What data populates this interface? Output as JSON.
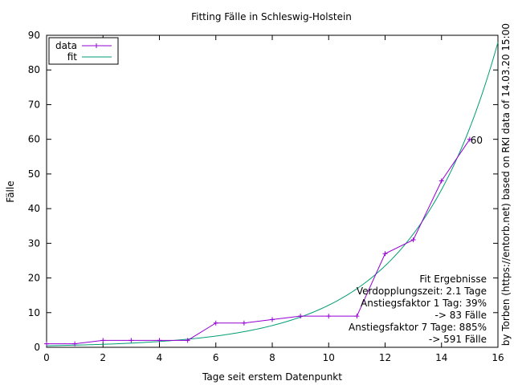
{
  "chart_data": {
    "type": "line",
    "title": "Fitting Fälle in Schleswig-Holstein",
    "xlabel": "Tage seit erstem Datenpunkt",
    "ylabel": "Fälle",
    "xlim": [
      0,
      16
    ],
    "ylim": [
      0,
      90
    ],
    "x_ticks": [
      "0",
      "2",
      "4",
      "6",
      "8",
      "10",
      "12",
      "14",
      "16"
    ],
    "y_ticks": [
      "0",
      "10",
      "20",
      "30",
      "40",
      "50",
      "60",
      "70",
      "80",
      "90"
    ],
    "grid": false,
    "legend_position": "top-left",
    "series": [
      {
        "name": "data",
        "color": "#9400d3",
        "marker": "plus",
        "x": [
          0,
          1,
          2,
          3,
          4,
          5,
          6,
          7,
          8,
          9,
          10,
          11,
          12,
          13,
          14,
          15
        ],
        "y": [
          1,
          1,
          2,
          2,
          2,
          2,
          7,
          7,
          8,
          9,
          9,
          9,
          27,
          31,
          48,
          60
        ]
      },
      {
        "name": "fit",
        "color": "#009e73",
        "a": 0.448,
        "b": 0.33,
        "x": [
          0,
          16
        ]
      }
    ],
    "point_label": {
      "text": "60",
      "x": 15,
      "y": 60
    },
    "annotations": [
      "Fit Ergebnisse",
      "Verdopplungszeit: 2.1 Tage",
      "Anstiegsfaktor 1 Tag: 39%",
      "-> 83 Fälle",
      "Anstiegsfaktor 7 Tage: 885%",
      "-> 591 Fälle"
    ],
    "side_note": "by Torben (https://entorb.net) based on RKI data of 14.03.20 15:00"
  }
}
